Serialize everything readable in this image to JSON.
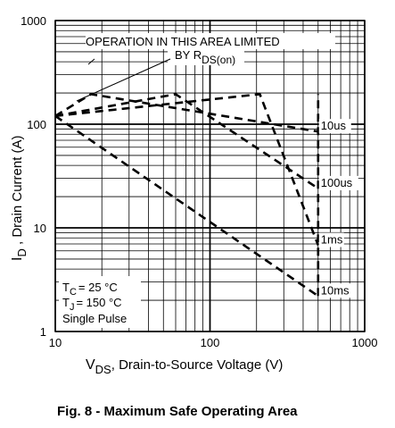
{
  "chart_data": {
    "type": "line",
    "x_scale": "log",
    "y_scale": "log",
    "xlim": [
      10,
      1000
    ],
    "ylim": [
      1,
      1000
    ],
    "grid": true,
    "x_ticks": [
      "10",
      "100",
      "1000"
    ],
    "y_ticks": [
      "1",
      "10",
      "100",
      "1000"
    ],
    "xlabel": {
      "main": "V",
      "sub": "DS",
      "rest": ", Drain-to-Source Voltage (V)"
    },
    "ylabel": {
      "main": "I",
      "sub": "D",
      "rest": " , Drain Current (A)"
    },
    "series": [
      {
        "name": "10us",
        "x": [
          10,
          17,
          500
        ],
        "y": [
          120,
          195,
          85
        ]
      },
      {
        "name": "100us",
        "x": [
          10,
          60,
          500
        ],
        "y": [
          120,
          195,
          24
        ]
      },
      {
        "name": "1ms",
        "x": [
          10,
          210,
          500
        ],
        "y": [
          120,
          195,
          6.8
        ]
      },
      {
        "name": "10ms",
        "x": [
          10,
          500
        ],
        "y": [
          120,
          2.2
        ]
      },
      {
        "name": "",
        "x": [
          500,
          500
        ],
        "y": [
          2.2,
          195
        ]
      }
    ],
    "rds_limit": {
      "x": [
        10,
        17
      ],
      "y": [
        120,
        195
      ]
    },
    "current_limit": {
      "y": 195,
      "x": [
        17,
        500
      ]
    },
    "voltage_limit": {
      "x": 500,
      "y": [
        2.2,
        195
      ]
    },
    "annotation": {
      "line1": "OPERATION IN THIS AREA LIMITED",
      "line2_main": "BY R",
      "line2_sub": "DS(on)"
    },
    "conditions": {
      "tc_main": "T",
      "tc_sub": "C",
      "tc_rest": "= 25 °C",
      "tj_main": "T",
      "tj_sub": "J",
      "tj_rest": "= 150 °C",
      "pulse": "Single Pulse"
    }
  },
  "caption": "Fig. 8 - Maximum Safe Operating Area"
}
